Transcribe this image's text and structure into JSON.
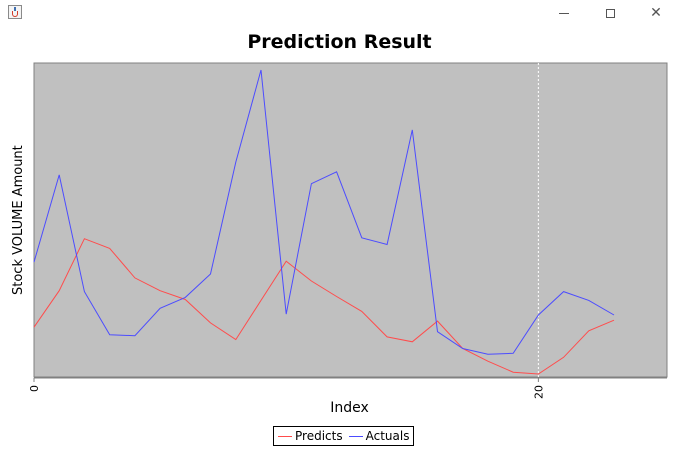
{
  "window": {
    "icon": "java-cup-icon",
    "controls": [
      "minimize-icon",
      "maximize-icon",
      "close-icon"
    ]
  },
  "chart_data": {
    "type": "line",
    "title": "Prediction Result",
    "xlabel": "Index",
    "ylabel": "Stock VOLUME Amount",
    "x": [
      0,
      1,
      2,
      3,
      4,
      5,
      6,
      7,
      8,
      9,
      10,
      11,
      12,
      13,
      14,
      15,
      16,
      17,
      18,
      19,
      20,
      21,
      22,
      23
    ],
    "xlim": [
      0,
      25.1
    ],
    "ylim": [
      0,
      100
    ],
    "xticks": [
      0,
      20
    ],
    "xtick_labels": [
      "0",
      "20"
    ],
    "yticks": [],
    "background": "#c0c0c0",
    "vertical_marker_x": 20,
    "series": [
      {
        "name": "Predicts",
        "color": "#ff4c4c",
        "values": [
          15.4,
          27.4,
          44.5,
          41.3,
          31.6,
          27.4,
          24.5,
          16.8,
          11.3,
          24.2,
          37.1,
          30.6,
          25.5,
          20.6,
          12.2,
          10.6,
          17.4,
          8.4,
          4.2,
          0.6,
          0,
          5.5,
          14.2,
          17.7
        ]
      },
      {
        "name": "Actuals",
        "color": "#4c4cff",
        "values": [
          36.8,
          65.5,
          27.1,
          12.9,
          12.6,
          21.6,
          25.2,
          32.9,
          69.7,
          100,
          19.7,
          62.6,
          66.5,
          44.8,
          42.6,
          80.3,
          13.9,
          8.4,
          6.5,
          6.8,
          19.4,
          27.1,
          24.2,
          19.4
        ]
      }
    ],
    "legend": [
      "Predicts",
      "Actuals"
    ],
    "legend_position": "bottom-center",
    "grid": false
  }
}
